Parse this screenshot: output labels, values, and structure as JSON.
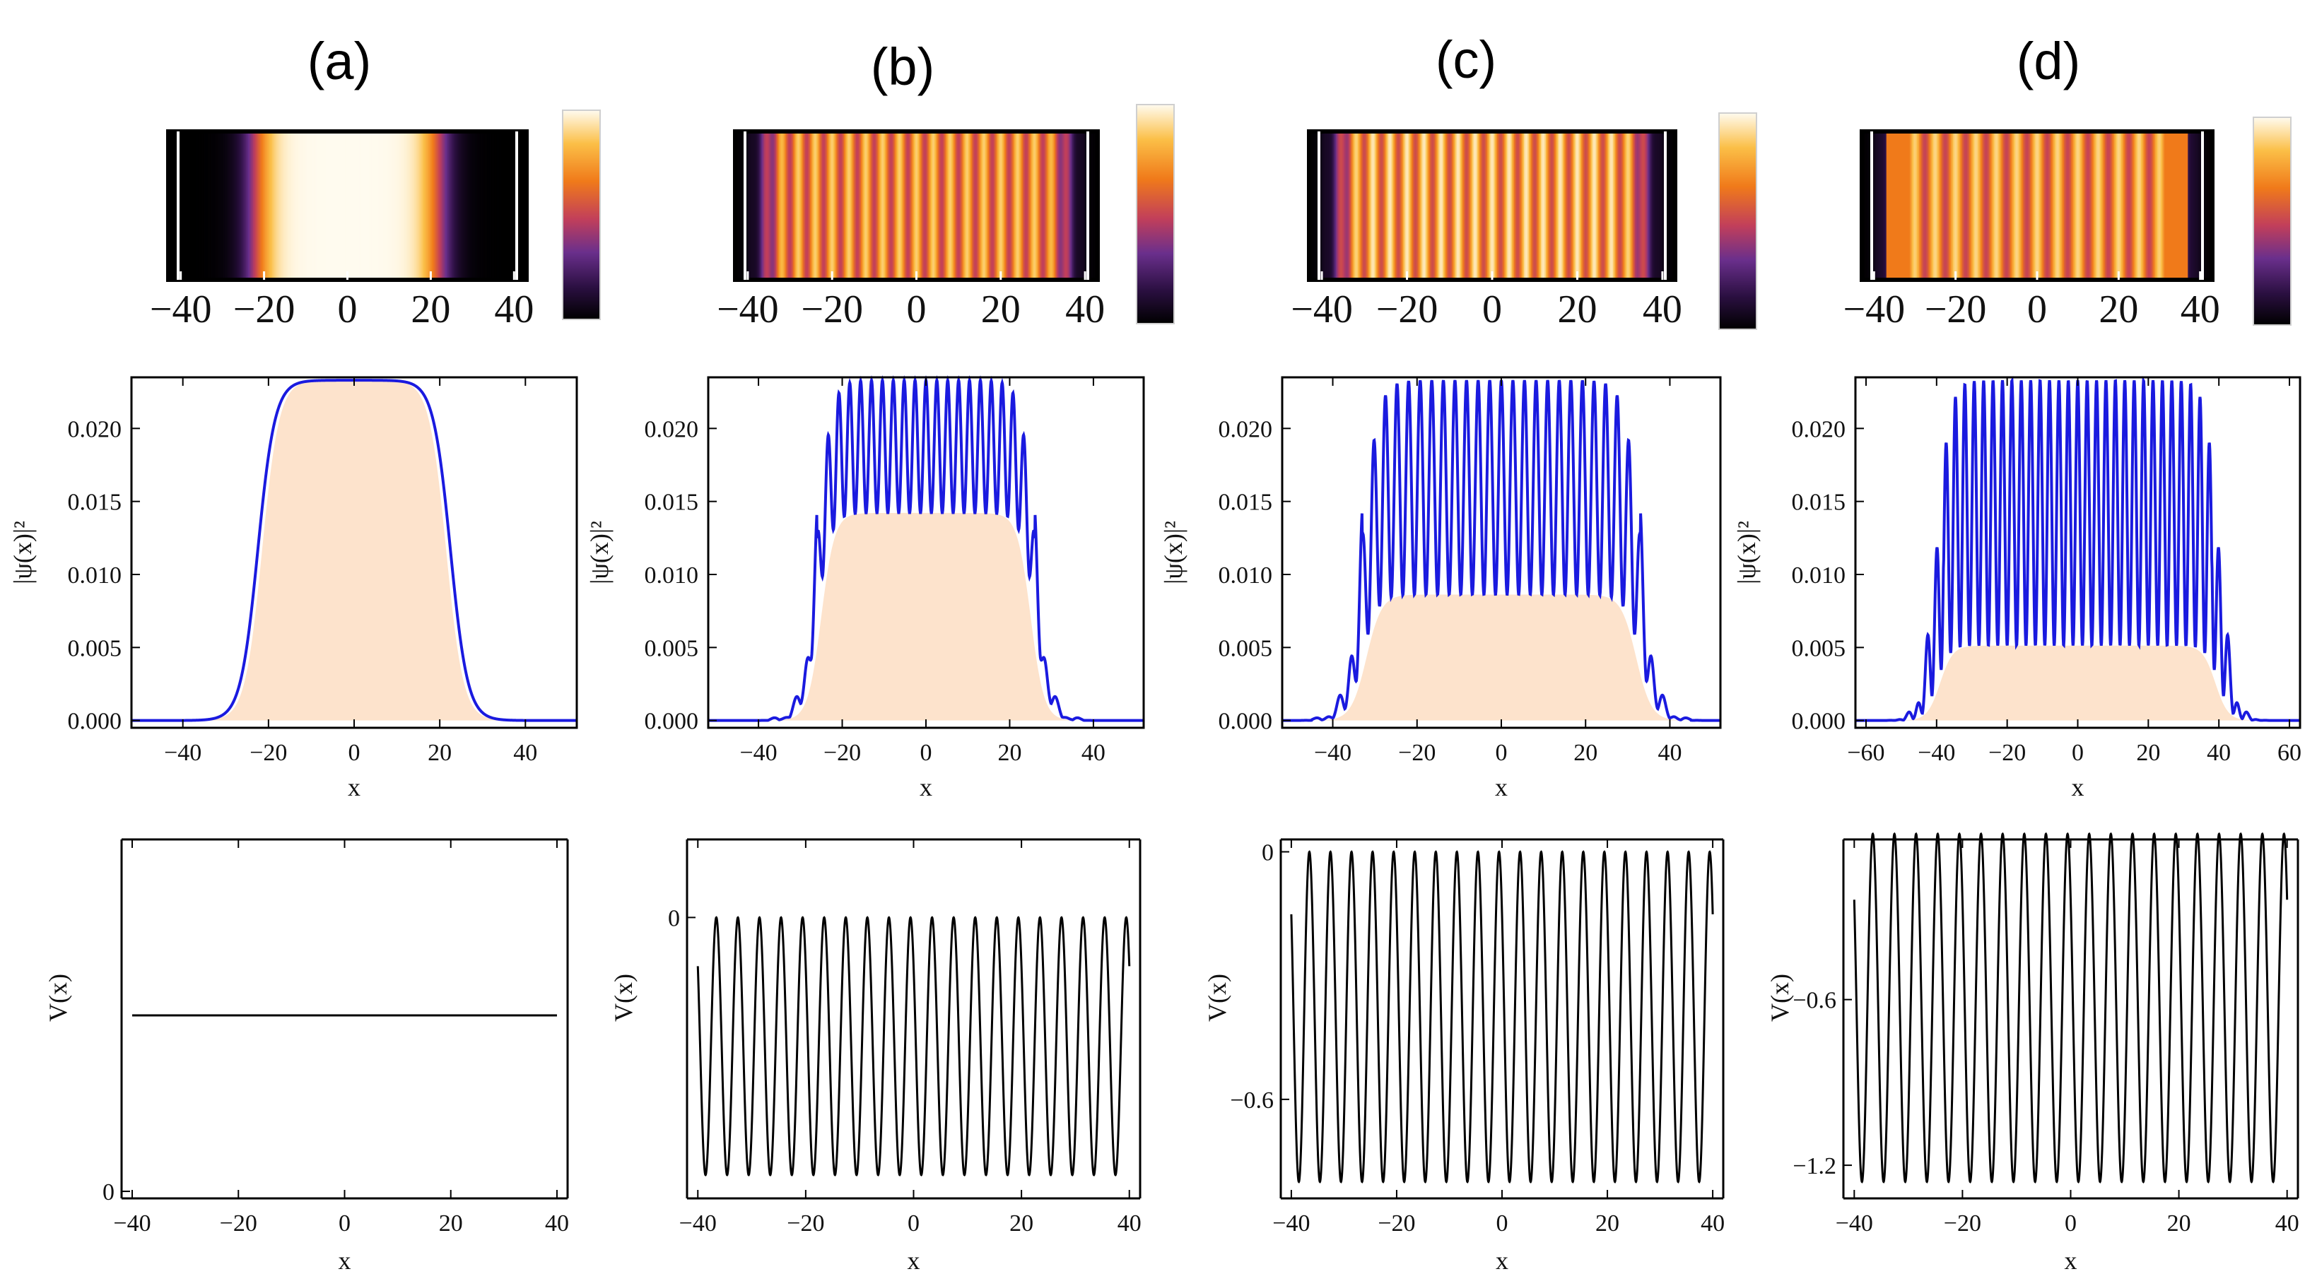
{
  "panels": [
    {
      "label": "(a)",
      "density_map": {
        "type": "heatmap",
        "x_ticks": [
          "−40",
          "−20",
          "0",
          "20",
          "40"
        ],
        "x_values": [
          -40,
          -20,
          0,
          20,
          40
        ],
        "xlim": [
          -43,
          43
        ],
        "colormap": "black-purple-orange-white",
        "n_fringes": 0,
        "peak_fraction": 1.0,
        "edge_style": "plain"
      },
      "density_profile": {
        "type": "area",
        "xlabel": "x",
        "ylabel": "|ψ(x)|²",
        "x_ticks": [
          -40,
          -20,
          0,
          20,
          40
        ],
        "y_ticks": [
          "0.000",
          "0.005",
          "0.010",
          "0.015",
          "0.020"
        ],
        "xlim": [
          -52,
          52
        ],
        "ylim": [
          -0.0005,
          0.0235
        ],
        "peak": 0.0233,
        "plateau_half_width": 22.5,
        "edge_width": 2.0,
        "n_fringes": 0,
        "min_fraction": 1.0,
        "side_lobes": false,
        "fill_color": "#fde3cc",
        "line_color": "#1a1adf"
      },
      "potential": {
        "type": "line",
        "xlabel": "x",
        "ylabel": "V(x)",
        "x_ticks": [
          -40,
          -20,
          0,
          20,
          40
        ],
        "y_ticks": [
          "0"
        ],
        "y_tick_values": [
          0
        ],
        "xlim": [
          -42,
          42
        ],
        "ylim": [
          -0.02,
          1.0
        ],
        "constant": true,
        "level": 0.5,
        "line_color": "#000000"
      }
    },
    {
      "label": "(b)",
      "density_map": {
        "type": "heatmap",
        "x_ticks": [
          "−40",
          "−20",
          "0",
          "20",
          "40"
        ],
        "x_values": [
          -40,
          -20,
          0,
          20,
          40
        ],
        "xlim": [
          -43,
          43
        ],
        "colormap": "black-purple-orange-white",
        "n_fringes": 20,
        "peak_fraction": 0.88,
        "edge_style": "plain"
      },
      "density_profile": {
        "type": "line",
        "xlabel": "x",
        "ylabel": "|ψ(x)|²",
        "x_ticks": [
          -40,
          -20,
          0,
          20,
          40
        ],
        "y_ticks": [
          "0.000",
          "0.005",
          "0.010",
          "0.015",
          "0.020"
        ],
        "xlim": [
          -52,
          52
        ],
        "ylim": [
          -0.0005,
          0.0235
        ],
        "peak": 0.0233,
        "plateau_half_width": 26,
        "edge_width": 1.6,
        "n_fringes": 20,
        "min_fraction": 0.61,
        "side_lobes": true,
        "fill_color": "#fde3cc",
        "line_color": "#1a1adf"
      },
      "potential": {
        "type": "line",
        "xlabel": "x",
        "ylabel": "V(x)",
        "x_ticks": [
          -40,
          -20,
          0,
          20,
          40
        ],
        "y_ticks": [
          "0"
        ],
        "y_tick_values": [
          0
        ],
        "xlim": [
          -42,
          42
        ],
        "ylim": [
          -0.36,
          0.1
        ],
        "constant": false,
        "amplitude": 0.165,
        "offset": -0.165,
        "n_periods": 20,
        "line_color": "#000000"
      }
    },
    {
      "label": "(c)",
      "density_map": {
        "type": "heatmap",
        "x_ticks": [
          "−40",
          "−20",
          "0",
          "20",
          "40"
        ],
        "x_values": [
          -40,
          -20,
          0,
          20,
          40
        ],
        "xlim": [
          -43,
          43
        ],
        "colormap": "black-purple-orange-white",
        "n_fringes": 20,
        "peak_fraction": 0.95,
        "edge_style": "plain"
      },
      "density_profile": {
        "type": "line",
        "xlabel": "x",
        "ylabel": "|ψ(x)|²",
        "x_ticks": [
          -40,
          -20,
          0,
          20,
          40
        ],
        "y_ticks": [
          "0.000",
          "0.005",
          "0.010",
          "0.015",
          "0.020"
        ],
        "xlim": [
          -52,
          52
        ],
        "ylim": [
          -0.0005,
          0.0235
        ],
        "peak": 0.0233,
        "plateau_half_width": 33,
        "edge_width": 1.8,
        "n_fringes": 24,
        "min_fraction": 0.37,
        "side_lobes": true,
        "fill_color": "#fde3cc",
        "line_color": "#1a1adf"
      },
      "potential": {
        "type": "line",
        "xlabel": "x",
        "ylabel": "V(x)",
        "x_ticks": [
          -40,
          -20,
          0,
          20,
          40
        ],
        "y_ticks": [
          "0",
          "−0.6"
        ],
        "y_tick_values": [
          0,
          -0.6
        ],
        "xlim": [
          -42,
          42
        ],
        "ylim": [
          -0.84,
          0.03
        ],
        "constant": false,
        "amplitude": 0.4,
        "offset": -0.4,
        "n_periods": 20,
        "line_color": "#000000"
      }
    },
    {
      "label": "(d)",
      "density_map": {
        "type": "heatmap",
        "x_ticks": [
          "−40",
          "−20",
          "0",
          "20",
          "40"
        ],
        "x_values": [
          -40,
          -20,
          0,
          20,
          40
        ],
        "xlim": [
          -43,
          43
        ],
        "colormap": "black-purple-orange-white",
        "n_fringes": 16,
        "peak_fraction": 0.9,
        "edge_style": "bright-edges"
      },
      "density_profile": {
        "type": "line",
        "xlabel": "x",
        "ylabel": "|ψ(x)|²",
        "x_ticks": [
          -60,
          -40,
          -20,
          0,
          20,
          40,
          60
        ],
        "y_ticks": [
          "0.000",
          "0.005",
          "0.010",
          "0.015",
          "0.020"
        ],
        "xlim": [
          -63,
          63
        ],
        "ylim": [
          -0.0005,
          0.0235
        ],
        "peak": 0.0233,
        "plateau_half_width": 40,
        "edge_width": 1.8,
        "n_fringes": 30,
        "min_fraction": 0.22,
        "side_lobes": true,
        "fill_color": "#fde3cc",
        "line_color": "#1a1adf"
      },
      "potential": {
        "type": "line",
        "xlabel": "x",
        "ylabel": "V(x)",
        "x_ticks": [
          -40,
          -20,
          0,
          20,
          40
        ],
        "y_ticks": [
          "−0.6",
          "−1.2"
        ],
        "y_tick_values": [
          -0.6,
          -1.2
        ],
        "xlim": [
          -42,
          42
        ],
        "ylim": [
          -1.32,
          -0.02
        ],
        "constant": false,
        "amplitude": 0.63,
        "offset": -0.63,
        "n_periods": 20,
        "line_color": "#000000"
      }
    }
  ]
}
